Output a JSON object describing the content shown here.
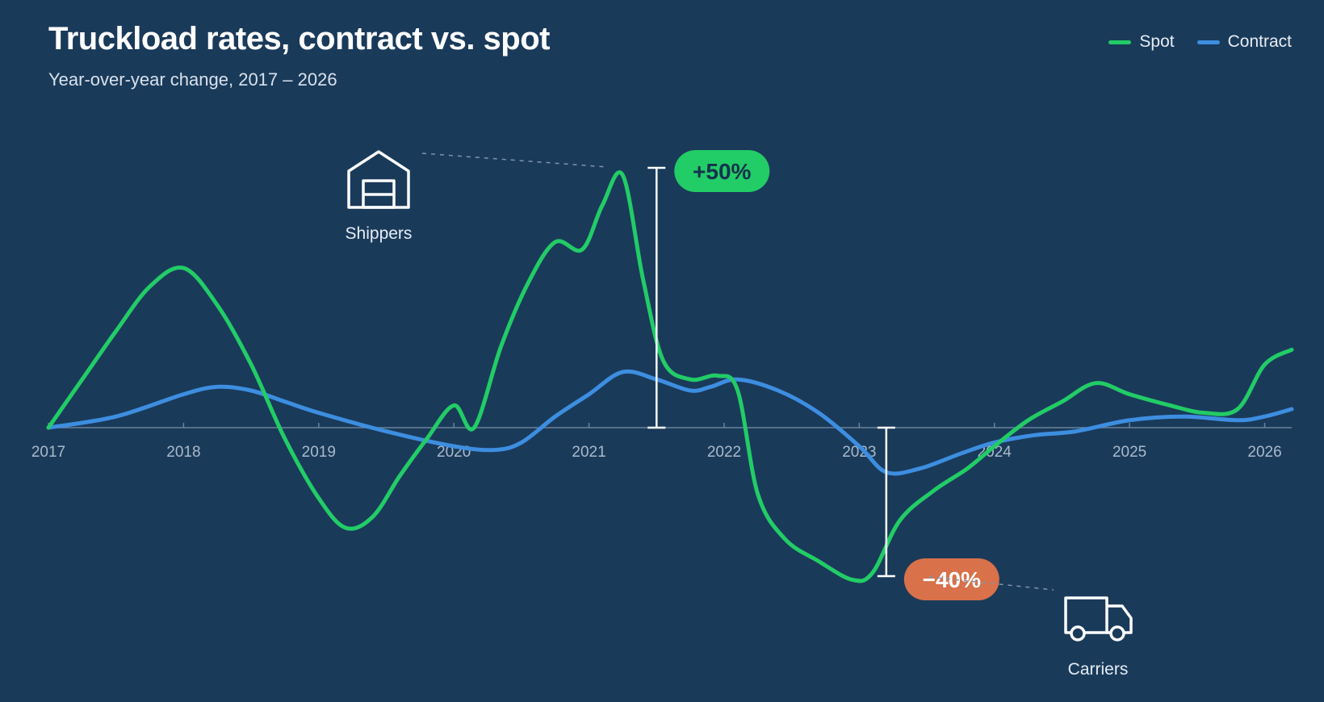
{
  "chart_data": {
    "type": "line",
    "title": "Truckload rates, contract vs. spot",
    "subtitle": "Year-over-year change, 2017 – 2026",
    "xlim": [
      2017,
      2026.2
    ],
    "ylim": [
      -0.55,
      0.72
    ],
    "x_ticks": [
      "2017",
      "2018",
      "2019",
      "2020",
      "2021",
      "2022",
      "2023",
      "2024",
      "2025",
      "2026"
    ],
    "grid": false,
    "legend_position": "top-right",
    "series": [
      {
        "name": "Spot",
        "color": "#22cc66",
        "points": [
          [
            2017.0,
            0.0
          ],
          [
            2017.25,
            0.13
          ],
          [
            2017.5,
            0.26
          ],
          [
            2017.75,
            0.38
          ],
          [
            2018.0,
            0.43
          ],
          [
            2018.25,
            0.33
          ],
          [
            2018.5,
            0.17
          ],
          [
            2018.75,
            -0.03
          ],
          [
            2019.0,
            -0.19
          ],
          [
            2019.2,
            -0.27
          ],
          [
            2019.4,
            -0.24
          ],
          [
            2019.6,
            -0.13
          ],
          [
            2019.8,
            -0.03
          ],
          [
            2020.0,
            0.06
          ],
          [
            2020.15,
            0.0
          ],
          [
            2020.35,
            0.22
          ],
          [
            2020.55,
            0.39
          ],
          [
            2020.75,
            0.5
          ],
          [
            2020.95,
            0.48
          ],
          [
            2021.1,
            0.6
          ],
          [
            2021.25,
            0.68
          ],
          [
            2021.4,
            0.4
          ],
          [
            2021.55,
            0.18
          ],
          [
            2021.75,
            0.13
          ],
          [
            2021.95,
            0.14
          ],
          [
            2022.1,
            0.1
          ],
          [
            2022.25,
            -0.18
          ],
          [
            2022.45,
            -0.3
          ],
          [
            2022.7,
            -0.36
          ],
          [
            2022.95,
            -0.41
          ],
          [
            2023.1,
            -0.39
          ],
          [
            2023.3,
            -0.25
          ],
          [
            2023.55,
            -0.17
          ],
          [
            2023.8,
            -0.11
          ],
          [
            2024.0,
            -0.05
          ],
          [
            2024.25,
            0.02
          ],
          [
            2024.5,
            0.07
          ],
          [
            2024.75,
            0.12
          ],
          [
            2025.0,
            0.09
          ],
          [
            2025.3,
            0.06
          ],
          [
            2025.55,
            0.04
          ],
          [
            2025.8,
            0.05
          ],
          [
            2026.0,
            0.17
          ],
          [
            2026.2,
            0.21
          ]
        ]
      },
      {
        "name": "Contract",
        "color": "#3d8ee0",
        "points": [
          [
            2017.0,
            0.0
          ],
          [
            2017.5,
            0.03
          ],
          [
            2018.0,
            0.09
          ],
          [
            2018.25,
            0.11
          ],
          [
            2018.5,
            0.1
          ],
          [
            2018.75,
            0.07
          ],
          [
            2019.0,
            0.04
          ],
          [
            2019.5,
            -0.01
          ],
          [
            2020.0,
            -0.05
          ],
          [
            2020.3,
            -0.06
          ],
          [
            2020.5,
            -0.04
          ],
          [
            2020.75,
            0.03
          ],
          [
            2021.0,
            0.09
          ],
          [
            2021.25,
            0.15
          ],
          [
            2021.5,
            0.13
          ],
          [
            2021.75,
            0.1
          ],
          [
            2021.9,
            0.11
          ],
          [
            2022.1,
            0.13
          ],
          [
            2022.4,
            0.1
          ],
          [
            2022.7,
            0.04
          ],
          [
            2023.0,
            -0.05
          ],
          [
            2023.2,
            -0.12
          ],
          [
            2023.45,
            -0.11
          ],
          [
            2023.75,
            -0.07
          ],
          [
            2024.0,
            -0.04
          ],
          [
            2024.3,
            -0.02
          ],
          [
            2024.6,
            -0.01
          ],
          [
            2025.0,
            0.02
          ],
          [
            2025.4,
            0.03
          ],
          [
            2025.8,
            0.02
          ],
          [
            2026.0,
            0.03
          ],
          [
            2026.2,
            0.05
          ]
        ]
      }
    ],
    "annotations": [
      {
        "label": "+50%",
        "x": 2021.5,
        "y_from": 0.0,
        "y_to": 0.7,
        "color": "#22cc66",
        "text_color": "#15324d"
      },
      {
        "label": "−40%",
        "x": 2023.2,
        "y_from": 0.0,
        "y_to": -0.4,
        "color": "#d9714a",
        "text_color": "#ffffff"
      }
    ],
    "callouts": [
      {
        "label": "Shippers",
        "icon": "warehouse-icon"
      },
      {
        "label": "Carriers",
        "icon": "truck-icon"
      }
    ],
    "colors": {
      "background": "#1a3a5a",
      "axis": "#6b8299",
      "tick_label": "#a9bacb"
    }
  }
}
